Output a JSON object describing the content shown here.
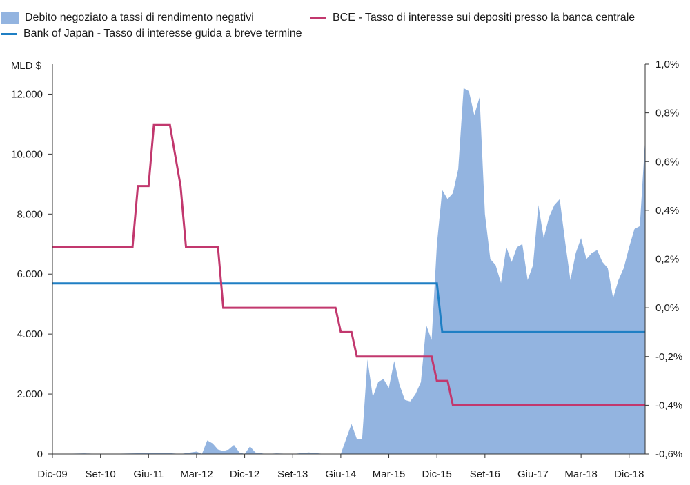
{
  "legend": {
    "area_label": "Debito negoziato a tassi di rendimento negativi",
    "ecb_label": "BCE - Tasso di interesse sui depositi presso la banca centrale",
    "boj_label": "Bank of Japan - Tasso di interesse guida a breve termine"
  },
  "colors": {
    "area": "#93b4e0",
    "ecb": "#c2386e",
    "boj": "#1f7fc4",
    "axis": "#333333"
  },
  "chart_data": {
    "type": "area",
    "left_unit": "MLD $",
    "x_ticks": [
      "Dic-09",
      "Set-10",
      "Giu-11",
      "Mar-12",
      "Dic-12",
      "Set-13",
      "Giu-14",
      "Mar-15",
      "Dic-15",
      "Set-16",
      "Giu-17",
      "Mar-18",
      "Dic-18"
    ],
    "y_left": {
      "range": [
        0,
        13000
      ],
      "ticks": [
        0,
        2000,
        4000,
        6000,
        8000,
        10000,
        12000
      ],
      "tick_labels": [
        "0",
        "2.000",
        "4.000",
        "6.000",
        "8.000",
        "10.000",
        "12.000"
      ]
    },
    "y_right": {
      "range": [
        -0.6,
        1.0
      ],
      "ticks": [
        -0.6,
        -0.4,
        -0.2,
        0.0,
        0.2,
        0.4,
        0.6,
        0.8,
        1.0
      ],
      "tick_labels": [
        "-0,6%",
        "-0,4%",
        "-0,2%",
        "0,0%",
        "0,2%",
        "0,4%",
        "0,6%",
        "0,8%",
        "1,0%"
      ]
    },
    "grid": false,
    "legend_position": "top",
    "series": [
      {
        "name": "Debito negoziato a tassi di rendimento negativi",
        "type": "area",
        "axis": "left",
        "x": [
          0,
          3,
          6,
          9,
          12,
          15,
          18,
          21,
          24,
          27,
          28,
          29,
          30,
          31,
          32,
          33,
          34,
          35,
          36,
          37,
          38,
          40,
          42,
          45,
          48,
          51,
          54,
          55,
          56,
          57,
          58,
          59,
          60,
          61,
          62,
          63,
          64,
          65,
          66,
          67,
          68,
          69,
          70,
          71,
          72,
          73,
          74,
          75,
          76,
          77,
          78,
          79,
          80,
          81,
          82,
          83,
          84,
          85,
          86,
          87,
          88,
          89,
          90,
          91,
          92,
          93,
          94,
          95,
          96,
          97,
          98,
          99,
          100,
          101,
          102,
          103,
          104,
          105,
          106,
          107,
          108,
          109,
          110,
          111
        ],
        "values": [
          0,
          10,
          20,
          0,
          10,
          20,
          30,
          40,
          0,
          80,
          0,
          450,
          350,
          150,
          100,
          150,
          300,
          50,
          0,
          250,
          50,
          0,
          20,
          0,
          50,
          0,
          0,
          500,
          1000,
          500,
          500,
          3150,
          1900,
          2400,
          2500,
          2200,
          3100,
          2300,
          1800,
          1750,
          2000,
          2400,
          4300,
          3800,
          7000,
          8800,
          8500,
          8700,
          9500,
          12200,
          12100,
          11300,
          11900,
          8000,
          6500,
          6300,
          5700,
          6900,
          6400,
          6900,
          7000,
          5800,
          6300,
          8300,
          7200,
          7900,
          8300,
          8500,
          7100,
          5800,
          6700,
          7200,
          6500,
          6700,
          6800,
          6400,
          6200,
          5200,
          5800,
          6200,
          6900,
          7500,
          7600,
          10500
        ]
      },
      {
        "name": "BCE - Tasso di interesse sui depositi presso la banca centrale",
        "type": "step-line",
        "axis": "right",
        "x": [
          0,
          15,
          16,
          18,
          19,
          22,
          24,
          25,
          31,
          32,
          53,
          54,
          56,
          57,
          71,
          72,
          74,
          75,
          111
        ],
        "values": [
          0.25,
          0.25,
          0.5,
          0.5,
          0.75,
          0.75,
          0.5,
          0.25,
          0.25,
          0.0,
          0.0,
          -0.1,
          -0.1,
          -0.2,
          -0.2,
          -0.3,
          -0.3,
          -0.4,
          -0.4
        ]
      },
      {
        "name": "Bank of Japan - Tasso di interesse guida a breve termine",
        "type": "step-line",
        "axis": "right",
        "x": [
          0,
          72,
          73,
          111
        ],
        "values": [
          0.1,
          0.1,
          -0.1,
          -0.1
        ]
      }
    ]
  }
}
